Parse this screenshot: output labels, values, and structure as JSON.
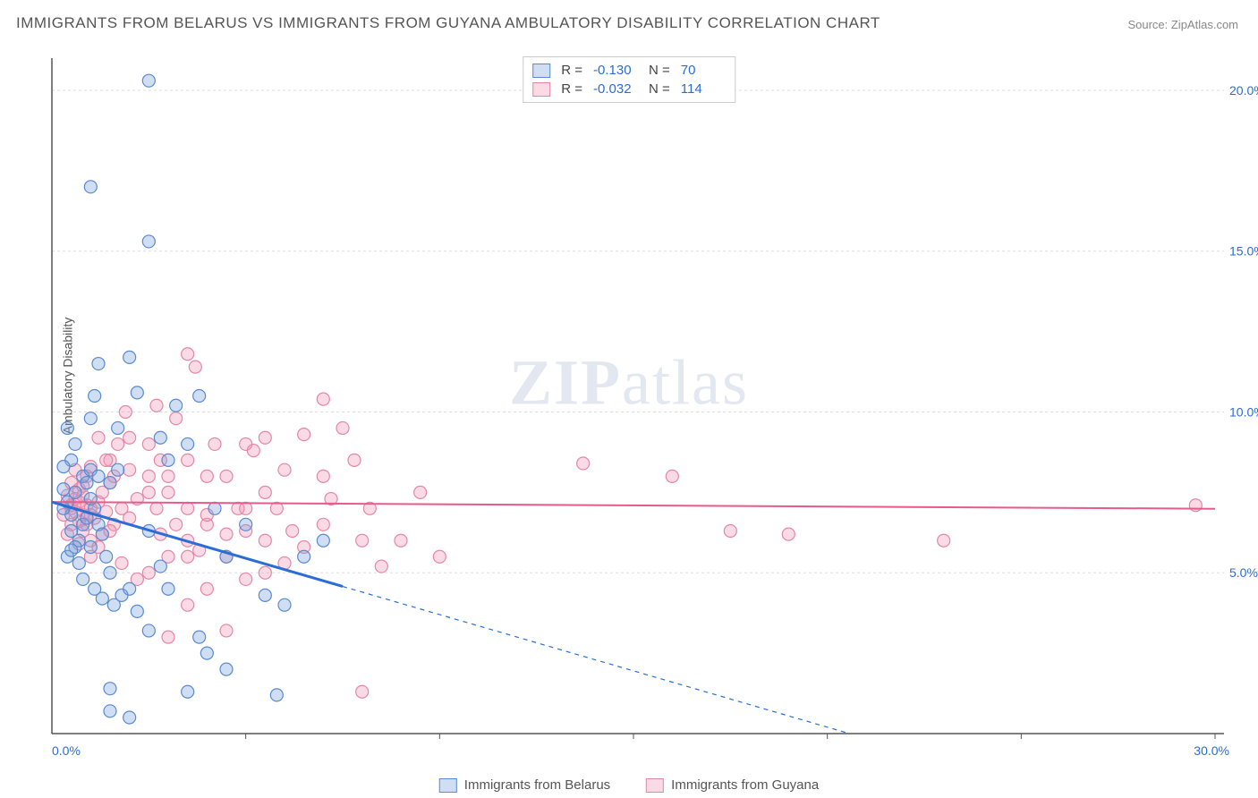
{
  "title": "IMMIGRANTS FROM BELARUS VS IMMIGRANTS FROM GUYANA AMBULATORY DISABILITY CORRELATION CHART",
  "source": "Source: ZipAtlas.com",
  "ylabel": "Ambulatory Disability",
  "watermark_a": "ZIP",
  "watermark_b": "atlas",
  "stats": {
    "series1": {
      "r_label": "R =",
      "r_val": "-0.130",
      "n_label": "N =",
      "n_val": "70"
    },
    "series2": {
      "r_label": "R =",
      "r_val": "-0.032",
      "n_label": "N =",
      "n_val": "114"
    }
  },
  "legend": {
    "series1": "Immigrants from Belarus",
    "series2": "Immigrants from Guyana"
  },
  "colors": {
    "series1_fill": "rgba(120,160,220,0.35)",
    "series1_stroke": "#5a8ad0",
    "series2_fill": "rgba(240,150,180,0.35)",
    "series2_stroke": "#e687a5",
    "line1": "#2a6dd6",
    "line2": "#e85a8a",
    "grid": "#dddddd",
    "axis": "#555555",
    "tick_text": "#2a6dd6"
  },
  "chart": {
    "type": "scatter",
    "xlim": [
      0,
      30
    ],
    "ylim": [
      0,
      21
    ],
    "xticks": [
      {
        "v": 0,
        "label": "0.0%"
      },
      {
        "v": 30,
        "label": "30.0%"
      }
    ],
    "yticks": [
      {
        "v": 5,
        "label": "5.0%"
      },
      {
        "v": 10,
        "label": "10.0%"
      },
      {
        "v": 15,
        "label": "15.0%"
      },
      {
        "v": 20,
        "label": "20.0%"
      }
    ],
    "xtick_lines": [
      5,
      10,
      15,
      20,
      25,
      30
    ],
    "marker_radius": 7,
    "series1_points": [
      [
        0.4,
        7.2
      ],
      [
        0.5,
        6.8
      ],
      [
        0.6,
        7.5
      ],
      [
        0.7,
        6.0
      ],
      [
        0.8,
        8.0
      ],
      [
        0.5,
        8.5
      ],
      [
        0.6,
        9.0
      ],
      [
        0.4,
        9.5
      ],
      [
        0.9,
        7.8
      ],
      [
        1.0,
        8.2
      ],
      [
        1.1,
        7.0
      ],
      [
        1.2,
        6.5
      ],
      [
        1.3,
        6.2
      ],
      [
        1.0,
        5.8
      ],
      [
        1.4,
        5.5
      ],
      [
        1.5,
        5.0
      ],
      [
        0.8,
        4.8
      ],
      [
        1.1,
        4.5
      ],
      [
        1.3,
        4.2
      ],
      [
        1.6,
        4.0
      ],
      [
        1.8,
        4.3
      ],
      [
        2.0,
        4.5
      ],
      [
        2.0,
        11.7
      ],
      [
        1.2,
        11.5
      ],
      [
        2.2,
        10.6
      ],
      [
        2.8,
        9.2
      ],
      [
        2.5,
        6.3
      ],
      [
        2.8,
        5.2
      ],
      [
        2.2,
        3.8
      ],
      [
        2.5,
        3.2
      ],
      [
        3.0,
        4.5
      ],
      [
        3.0,
        8.5
      ],
      [
        3.2,
        10.2
      ],
      [
        3.5,
        9.0
      ],
      [
        3.8,
        10.5
      ],
      [
        3.8,
        3.0
      ],
      [
        4.0,
        2.5
      ],
      [
        4.2,
        7.0
      ],
      [
        4.5,
        5.5
      ],
      [
        5.0,
        6.5
      ],
      [
        5.5,
        4.3
      ],
      [
        5.8,
        1.2
      ],
      [
        6.0,
        4.0
      ],
      [
        6.5,
        5.5
      ],
      [
        7.0,
        6.0
      ],
      [
        2.5,
        20.3
      ],
      [
        1.0,
        17.0
      ],
      [
        2.5,
        15.3
      ],
      [
        1.5,
        0.7
      ],
      [
        2.0,
        0.5
      ],
      [
        1.5,
        1.4
      ],
      [
        3.5,
        1.3
      ],
      [
        1.0,
        9.8
      ],
      [
        1.7,
        9.5
      ],
      [
        0.8,
        6.5
      ],
      [
        0.3,
        7.0
      ],
      [
        0.3,
        7.6
      ],
      [
        0.5,
        6.3
      ],
      [
        0.6,
        5.8
      ],
      [
        0.9,
        6.7
      ],
      [
        1.0,
        7.3
      ],
      [
        1.2,
        8.0
      ],
      [
        1.5,
        7.8
      ],
      [
        1.7,
        8.2
      ],
      [
        0.4,
        5.5
      ],
      [
        0.5,
        5.7
      ],
      [
        0.7,
        5.3
      ],
      [
        0.3,
        8.3
      ],
      [
        1.1,
        10.5
      ],
      [
        4.5,
        2.0
      ]
    ],
    "series2_points": [
      [
        0.5,
        7.0
      ],
      [
        0.6,
        7.3
      ],
      [
        0.7,
        7.6
      ],
      [
        0.8,
        6.8
      ],
      [
        0.9,
        6.5
      ],
      [
        1.0,
        7.0
      ],
      [
        1.1,
        6.7
      ],
      [
        1.2,
        7.2
      ],
      [
        1.3,
        7.5
      ],
      [
        1.4,
        6.9
      ],
      [
        1.5,
        7.8
      ],
      [
        1.6,
        6.5
      ],
      [
        1.8,
        7.0
      ],
      [
        2.0,
        6.7
      ],
      [
        2.2,
        7.3
      ],
      [
        2.5,
        8.0
      ],
      [
        2.7,
        10.2
      ],
      [
        2.8,
        6.2
      ],
      [
        3.0,
        7.5
      ],
      [
        3.2,
        9.8
      ],
      [
        3.5,
        11.8
      ],
      [
        3.5,
        8.5
      ],
      [
        3.7,
        11.4
      ],
      [
        3.5,
        6.0
      ],
      [
        4.0,
        8.0
      ],
      [
        4.2,
        9.0
      ],
      [
        4.5,
        6.2
      ],
      [
        4.8,
        7.0
      ],
      [
        5.0,
        6.3
      ],
      [
        5.2,
        8.8
      ],
      [
        5.5,
        9.2
      ],
      [
        5.5,
        6.0
      ],
      [
        5.8,
        7.0
      ],
      [
        6.0,
        8.2
      ],
      [
        6.2,
        6.3
      ],
      [
        6.5,
        5.8
      ],
      [
        7.0,
        10.4
      ],
      [
        7.0,
        6.5
      ],
      [
        7.2,
        7.3
      ],
      [
        7.5,
        9.5
      ],
      [
        7.8,
        8.5
      ],
      [
        8.0,
        6.0
      ],
      [
        8.2,
        7.0
      ],
      [
        8.5,
        5.2
      ],
      [
        9.0,
        6.0
      ],
      [
        9.5,
        7.5
      ],
      [
        10.0,
        5.5
      ],
      [
        13.7,
        8.4
      ],
      [
        16.0,
        8.0
      ],
      [
        17.5,
        6.3
      ],
      [
        19.0,
        6.2
      ],
      [
        23.0,
        6.0
      ],
      [
        29.5,
        7.1
      ],
      [
        3.0,
        3.0
      ],
      [
        3.5,
        4.0
      ],
      [
        4.0,
        4.5
      ],
      [
        2.5,
        5.0
      ],
      [
        4.5,
        3.2
      ],
      [
        8.0,
        1.3
      ],
      [
        5.0,
        4.8
      ],
      [
        1.5,
        8.5
      ],
      [
        1.7,
        9.0
      ],
      [
        1.9,
        10.0
      ],
      [
        2.0,
        9.2
      ],
      [
        0.4,
        7.4
      ],
      [
        0.5,
        7.1
      ],
      [
        0.7,
        6.6
      ],
      [
        0.8,
        7.4
      ],
      [
        0.9,
        8.0
      ],
      [
        1.0,
        8.3
      ],
      [
        1.0,
        6.0
      ],
      [
        1.2,
        5.8
      ],
      [
        1.3,
        6.2
      ],
      [
        1.4,
        8.5
      ],
      [
        1.6,
        8.0
      ],
      [
        1.8,
        5.3
      ],
      [
        2.2,
        4.8
      ],
      [
        2.5,
        7.5
      ],
      [
        2.7,
        7.0
      ],
      [
        2.8,
        8.5
      ],
      [
        3.0,
        5.5
      ],
      [
        3.5,
        7.0
      ],
      [
        3.8,
        5.7
      ],
      [
        4.0,
        6.5
      ],
      [
        4.5,
        8.0
      ],
      [
        5.0,
        9.0
      ],
      [
        5.5,
        7.5
      ],
      [
        6.0,
        5.3
      ],
      [
        6.5,
        9.3
      ],
      [
        7.0,
        8.0
      ],
      [
        0.3,
        6.8
      ],
      [
        0.5,
        6.5
      ],
      [
        0.6,
        6.9
      ],
      [
        0.7,
        7.2
      ],
      [
        0.8,
        7.7
      ],
      [
        0.9,
        7.1
      ],
      [
        0.4,
        6.2
      ],
      [
        0.5,
        7.8
      ],
      [
        0.6,
        8.2
      ],
      [
        0.7,
        5.9
      ],
      [
        0.8,
        6.3
      ],
      [
        1.0,
        5.5
      ],
      [
        1.2,
        9.2
      ],
      [
        1.5,
        6.3
      ],
      [
        1.0,
        6.8
      ],
      [
        2.0,
        8.2
      ],
      [
        2.5,
        9.0
      ],
      [
        3.0,
        8.0
      ],
      [
        3.2,
        6.5
      ],
      [
        3.5,
        5.5
      ],
      [
        4.0,
        6.8
      ],
      [
        4.5,
        5.5
      ],
      [
        5.0,
        7.0
      ],
      [
        5.5,
        5.0
      ]
    ],
    "trend1": {
      "y_at_x0": 7.2,
      "slope": -0.35,
      "solid_until_x": 7.5
    },
    "trend2": {
      "y_at_x0": 7.2,
      "slope": -0.007
    }
  }
}
